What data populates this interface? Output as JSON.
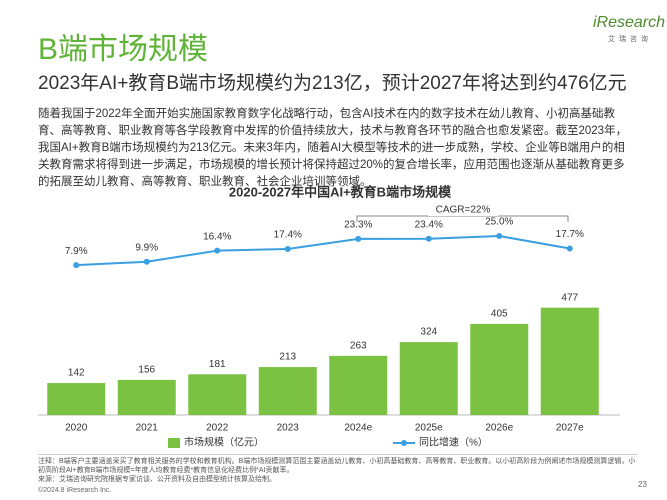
{
  "header": {
    "title": "B端市场规模",
    "subtitle": "2023年AI+教育B端市场规模约为213亿，预计2027年将达到约476亿元"
  },
  "logo": {
    "name": "iResearch",
    "tagline": "艾 瑞 咨 询"
  },
  "body": "随着我国于2022年全面开始实施国家教育数字化战略行动，包含AI技术在内的数字技术在幼儿教育、小初高基础教育、高等教育、职业教育等各学段教育中发挥的价值持续放大，技术与教育各环节的融合也愈发紧密。截至2023年，我国AI+教育B端市场规模约为213亿元。未来3年内，随着AI大模型等技术的进一步成熟，学校、企业等B端用户的相关教育需求将得到进一步满足，市场规模的增长预计将保持超过20%的复合增长率，应用范围也逐渐从基础教育更多的拓展至幼儿教育、高等教育、职业教育、社会企业培训等领域。",
  "chart_data": {
    "type": "bar-line",
    "title": "2020-2027年中国AI+教育B端市场规模",
    "categories": [
      "2020",
      "2021",
      "2022",
      "2023",
      "2024e",
      "2025e",
      "2026e",
      "2027e"
    ],
    "series": [
      {
        "name": "市场规模（亿元）",
        "type": "bar",
        "color": "#7cc242",
        "values": [
          142,
          156,
          181,
          213,
          263,
          324,
          405,
          477
        ]
      },
      {
        "name": "同比增速（%）",
        "type": "line",
        "axis": "y2",
        "color": "#3a9fe0",
        "values": [
          7.9,
          9.9,
          16.4,
          17.4,
          23.3,
          23.4,
          25.0,
          17.7
        ],
        "value_labels": [
          "7.9%",
          "9.9%",
          "16.4%",
          "17.4%",
          "23.3%",
          "23.4%",
          "25.0%",
          "17.7%"
        ]
      }
    ],
    "ylim": [
      0,
      1000
    ],
    "y2lim": [
      -80,
      52
    ],
    "annotation": "CAGR=22%"
  },
  "notes": [
    "注释：B端客户主要涵盖采买了教育相关服务的学校和教育机构。B端市场规模测算范围主要涵盖幼儿教育、小初高基础教育、高等教育、职业教育。以小初高阶段为例阐述市场规模测算逻辑，小初高阶段AI+教育B端市场规模=年度人均教育经费*教育信息化经费比例*AI贡献率。",
    "来源：艾瑞咨询研究院根据专家访谈、公开资料及自由模型统计核算及绘制。"
  ],
  "footer": "©2024.8 iResearch Inc.",
  "page": "23"
}
